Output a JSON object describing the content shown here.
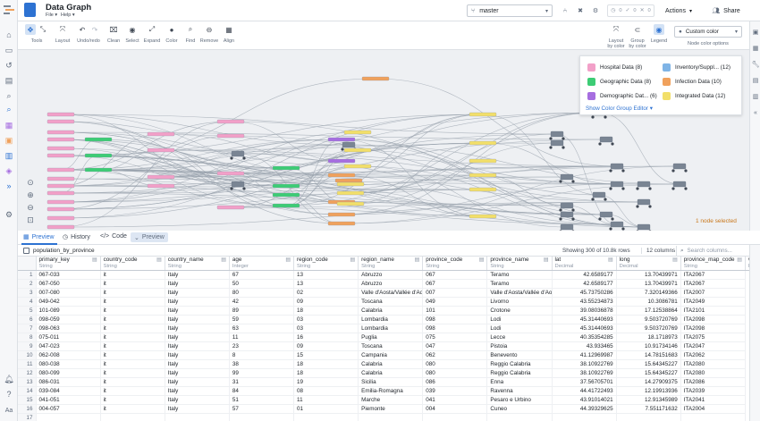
{
  "header": {
    "title": "Data Graph",
    "menu_file": "File ▾",
    "menu_help": "Help ▾",
    "branch": "master",
    "checks_pending": "0",
    "checks_success": "0",
    "checks_failed": "0",
    "actions_label": "Actions",
    "share_label": "Share"
  },
  "toolbar": {
    "tools": [
      "Tools",
      "Layout",
      "Undo/redo",
      "Clean",
      "Select",
      "Expand",
      "Color",
      "Find",
      "Remove",
      "Align"
    ],
    "layout_by_color": "Layout by color",
    "group_by_color": "Group by color",
    "legend": "Legend",
    "custom_color": "Custom color",
    "node_color_options": "Node color options"
  },
  "legend": {
    "items": [
      {
        "label": "Hospital Data (8)",
        "color": "#f2a0c8"
      },
      {
        "label": "Inventory/Suppl... (12)",
        "color": "#7fb4e6"
      },
      {
        "label": "Geographic Data (8)",
        "color": "#3dcc75"
      },
      {
        "label": "Infection Data (10)",
        "color": "#f0a15c"
      },
      {
        "label": "Demographic Dat... (6)",
        "color": "#a66ee0"
      },
      {
        "label": "Integrated Data (12)",
        "color": "#f2df6a"
      }
    ],
    "editor_link": "Show Color Group Editor ▾"
  },
  "canvas": {
    "selection_status": "1 node selected"
  },
  "bottom_tabs": {
    "preview": "Preview",
    "history": "History",
    "code": "Code",
    "tag": "Preview"
  },
  "table_info": {
    "dataset": "population_by_province",
    "rows": "Showing 300 of 10.8k rows",
    "columns": "12 columns",
    "search_placeholder": "Search columns..."
  },
  "columns": [
    {
      "name": "primary_key",
      "type": "String"
    },
    {
      "name": "country_code",
      "type": "String"
    },
    {
      "name": "country_name",
      "type": "String"
    },
    {
      "name": "age",
      "type": "Integer"
    },
    {
      "name": "region_code",
      "type": "String"
    },
    {
      "name": "region_name",
      "type": "String"
    },
    {
      "name": "province_code",
      "type": "String"
    },
    {
      "name": "province_name",
      "type": "String"
    },
    {
      "name": "lat",
      "type": "Decimal"
    },
    {
      "name": "long",
      "type": "Decimal"
    },
    {
      "name": "province_map_code",
      "type": "String"
    },
    {
      "name": "value",
      "type": "Integ"
    }
  ],
  "rows": [
    [
      "1",
      "067-033",
      "it",
      "Italy",
      "67",
      "13",
      "Abruzzo",
      "067",
      "Teramo",
      "42.6589177",
      "13.70439971",
      "ITA2067"
    ],
    [
      "2",
      "067-050",
      "it",
      "Italy",
      "50",
      "13",
      "Abruzzo",
      "067",
      "Teramo",
      "42.6589177",
      "13.70439971",
      "ITA2067"
    ],
    [
      "3",
      "007-080",
      "it",
      "Italy",
      "80",
      "02",
      "Valle d'Aosta/Vallée d'Aost",
      "007",
      "Valle d'Aosta/Vallée d'Aosta",
      "45.73750286",
      "7.320149366",
      "ITA2007"
    ],
    [
      "4",
      "049-042",
      "it",
      "Italy",
      "42",
      "09",
      "Toscana",
      "049",
      "Livorno",
      "43.55234873",
      "10.3086781",
      "ITA2049"
    ],
    [
      "5",
      "101-089",
      "it",
      "Italy",
      "89",
      "18",
      "Calabria",
      "101",
      "Crotone",
      "39.08036878",
      "17.12538864",
      "ITA2101"
    ],
    [
      "6",
      "098-059",
      "it",
      "Italy",
      "59",
      "03",
      "Lombardia",
      "098",
      "Lodi",
      "45.31440693",
      "9.503720769",
      "ITA2098"
    ],
    [
      "7",
      "098-063",
      "it",
      "Italy",
      "63",
      "03",
      "Lombardia",
      "098",
      "Lodi",
      "45.31440693",
      "9.503720769",
      "ITA2098"
    ],
    [
      "8",
      "075-011",
      "it",
      "Italy",
      "11",
      "16",
      "Puglia",
      "075",
      "Lecce",
      "40.35354285",
      "18.1718973",
      "ITA2075"
    ],
    [
      "9",
      "047-023",
      "it",
      "Italy",
      "23",
      "09",
      "Toscana",
      "047",
      "Pistoia",
      "43.933465",
      "10.91734146",
      "ITA2047"
    ],
    [
      "10",
      "062-008",
      "it",
      "Italy",
      "8",
      "15",
      "Campania",
      "062",
      "Benevento",
      "41.12969987",
      "14.78151683",
      "ITA2062"
    ],
    [
      "11",
      "080-038",
      "it",
      "Italy",
      "38",
      "18",
      "Calabria",
      "080",
      "Reggio Calabria",
      "38.10922769",
      "15.64345227",
      "ITA2080"
    ],
    [
      "12",
      "080-099",
      "it",
      "Italy",
      "99",
      "18",
      "Calabria",
      "080",
      "Reggio Calabria",
      "38.10922769",
      "15.64345227",
      "ITA2080"
    ],
    [
      "13",
      "086-031",
      "it",
      "Italy",
      "31",
      "19",
      "Sicilia",
      "086",
      "Enna",
      "37.56705701",
      "14.27909375",
      "ITA2086"
    ],
    [
      "14",
      "039-084",
      "it",
      "Italy",
      "84",
      "08",
      "Emilia-Romagna",
      "039",
      "Ravenna",
      "44.41722493",
      "12.19913936",
      "ITA2039"
    ],
    [
      "15",
      "041-051",
      "it",
      "Italy",
      "51",
      "11",
      "Marche",
      "041",
      "Pesaro e Urbino",
      "43.91014021",
      "12.91345989",
      "ITA2041"
    ],
    [
      "16",
      "004-057",
      "it",
      "Italy",
      "57",
      "01",
      "Piemonte",
      "004",
      "Cuneo",
      "44.39329625",
      "7.551171632",
      "ITA2004"
    ],
    [
      "17",
      "",
      "",
      "",
      "",
      "",
      "",
      "",
      "",
      "",
      "",
      ""
    ]
  ]
}
